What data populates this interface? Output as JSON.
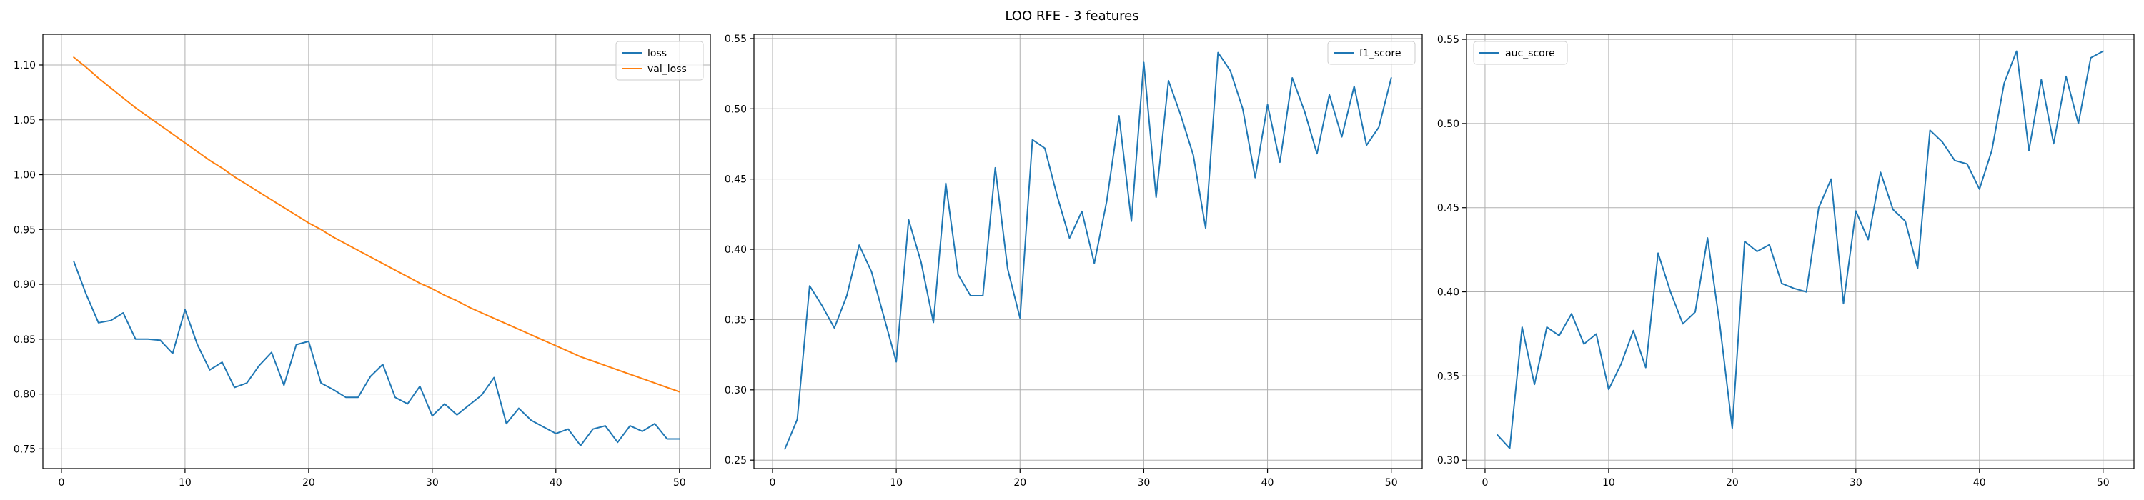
{
  "figure": {
    "title": "LOO RFE - 3 features"
  },
  "chart_data": [
    {
      "type": "line",
      "title": "",
      "xlabel": "",
      "ylabel": "",
      "xlim": [
        -1.5,
        52.5
      ],
      "ylim": [
        0.732,
        1.128
      ],
      "xticks": [
        0,
        10,
        20,
        30,
        40,
        50
      ],
      "yticks": [
        0.75,
        0.8,
        0.85,
        0.9,
        0.95,
        1.0,
        1.05,
        1.1
      ],
      "ytick_labels": [
        "0.75",
        "0.80",
        "0.85",
        "0.90",
        "0.95",
        "1.00",
        "1.05",
        "1.10"
      ],
      "grid": true,
      "legend": "top-right",
      "x": [
        1,
        2,
        3,
        4,
        5,
        6,
        7,
        8,
        9,
        10,
        11,
        12,
        13,
        14,
        15,
        16,
        17,
        18,
        19,
        20,
        21,
        22,
        23,
        24,
        25,
        26,
        27,
        28,
        29,
        30,
        31,
        32,
        33,
        34,
        35,
        36,
        37,
        38,
        39,
        40,
        41,
        42,
        43,
        44,
        45,
        46,
        47,
        48,
        49,
        50
      ],
      "series": [
        {
          "name": "loss",
          "color": "#1f77b4",
          "values": [
            0.921,
            0.891,
            0.865,
            0.867,
            0.874,
            0.85,
            0.85,
            0.849,
            0.837,
            0.877,
            0.845,
            0.822,
            0.829,
            0.806,
            0.81,
            0.826,
            0.838,
            0.808,
            0.845,
            0.848,
            0.81,
            0.804,
            0.797,
            0.797,
            0.816,
            0.827,
            0.797,
            0.791,
            0.807,
            0.78,
            0.791,
            0.781,
            0.79,
            0.799,
            0.815,
            0.773,
            0.787,
            0.776,
            0.77,
            0.764,
            0.768,
            0.753,
            0.768,
            0.771,
            0.756,
            0.771,
            0.766,
            0.773,
            0.759,
            0.759
          ]
        },
        {
          "name": "val_loss",
          "color": "#ff7f0e",
          "values": [
            1.107,
            1.098,
            1.088,
            1.079,
            1.07,
            1.061,
            1.053,
            1.045,
            1.037,
            1.029,
            1.021,
            1.013,
            1.006,
            0.998,
            0.991,
            0.984,
            0.977,
            0.97,
            0.963,
            0.956,
            0.95,
            0.943,
            0.937,
            0.931,
            0.925,
            0.919,
            0.913,
            0.907,
            0.901,
            0.896,
            0.89,
            0.885,
            0.879,
            0.874,
            0.869,
            0.864,
            0.859,
            0.854,
            0.849,
            0.844,
            0.839,
            0.834,
            0.83,
            0.826,
            0.822,
            0.818,
            0.814,
            0.81,
            0.806,
            0.802
          ]
        }
      ]
    },
    {
      "type": "line",
      "title": "",
      "xlabel": "",
      "ylabel": "",
      "xlim": [
        -1.5,
        52.5
      ],
      "ylim": [
        0.244,
        0.553
      ],
      "xticks": [
        0,
        10,
        20,
        30,
        40,
        50
      ],
      "yticks": [
        0.25,
        0.3,
        0.35,
        0.4,
        0.45,
        0.5,
        0.55
      ],
      "ytick_labels": [
        "0.25",
        "0.30",
        "0.35",
        "0.40",
        "0.45",
        "0.50",
        "0.55"
      ],
      "grid": true,
      "legend": "top-right",
      "x": [
        1,
        2,
        3,
        4,
        5,
        6,
        7,
        8,
        9,
        10,
        11,
        12,
        13,
        14,
        15,
        16,
        17,
        18,
        19,
        20,
        21,
        22,
        23,
        24,
        25,
        26,
        27,
        28,
        29,
        30,
        31,
        32,
        33,
        34,
        35,
        36,
        37,
        38,
        39,
        40,
        41,
        42,
        43,
        44,
        45,
        46,
        47,
        48,
        49,
        50
      ],
      "series": [
        {
          "name": "f1_score",
          "color": "#1f77b4",
          "values": [
            0.258,
            0.279,
            0.374,
            0.36,
            0.344,
            0.367,
            0.403,
            0.384,
            0.352,
            0.32,
            0.421,
            0.391,
            0.348,
            0.447,
            0.382,
            0.367,
            0.367,
            0.458,
            0.386,
            0.351,
            0.478,
            0.472,
            0.438,
            0.408,
            0.427,
            0.39,
            0.434,
            0.495,
            0.42,
            0.533,
            0.437,
            0.52,
            0.495,
            0.467,
            0.415,
            0.54,
            0.527,
            0.5,
            0.451,
            0.503,
            0.462,
            0.522,
            0.498,
            0.468,
            0.51,
            0.48,
            0.516,
            0.474,
            0.487,
            0.522
          ]
        }
      ]
    },
    {
      "type": "line",
      "title": "",
      "xlabel": "",
      "ylabel": "",
      "xlim": [
        -1.5,
        52.5
      ],
      "ylim": [
        0.295,
        0.553
      ],
      "xticks": [
        0,
        10,
        20,
        30,
        40,
        50
      ],
      "yticks": [
        0.3,
        0.35,
        0.4,
        0.45,
        0.5,
        0.55
      ],
      "ytick_labels": [
        "0.30",
        "0.35",
        "0.40",
        "0.45",
        "0.50",
        "0.55"
      ],
      "grid": true,
      "legend": "top-left",
      "x": [
        1,
        2,
        3,
        4,
        5,
        6,
        7,
        8,
        9,
        10,
        11,
        12,
        13,
        14,
        15,
        16,
        17,
        18,
        19,
        20,
        21,
        22,
        23,
        24,
        25,
        26,
        27,
        28,
        29,
        30,
        31,
        32,
        33,
        34,
        35,
        36,
        37,
        38,
        39,
        40,
        41,
        42,
        43,
        44,
        45,
        46,
        47,
        48,
        49,
        50
      ],
      "series": [
        {
          "name": "auc_score",
          "color": "#1f77b4",
          "values": [
            0.315,
            0.307,
            0.379,
            0.345,
            0.379,
            0.374,
            0.387,
            0.369,
            0.375,
            0.342,
            0.357,
            0.377,
            0.355,
            0.423,
            0.4,
            0.381,
            0.388,
            0.432,
            0.38,
            0.319,
            0.43,
            0.424,
            0.428,
            0.405,
            0.402,
            0.4,
            0.45,
            0.467,
            0.393,
            0.448,
            0.431,
            0.471,
            0.449,
            0.442,
            0.414,
            0.496,
            0.489,
            0.478,
            0.476,
            0.461,
            0.484,
            0.524,
            0.543,
            0.484,
            0.526,
            0.488,
            0.528,
            0.5,
            0.539,
            0.543
          ]
        }
      ]
    }
  ]
}
